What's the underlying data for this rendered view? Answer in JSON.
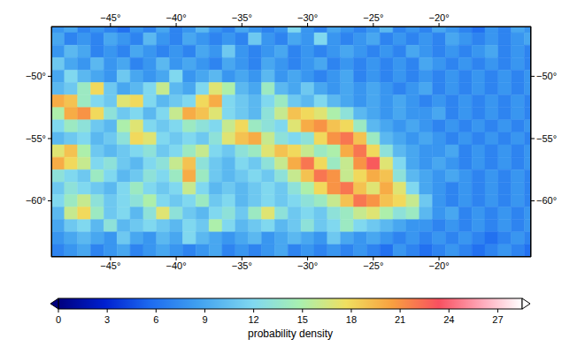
{
  "chart_data": {
    "type": "heatmap",
    "xlim": [
      -49.5,
      -13
    ],
    "ylim": [
      -64.5,
      -46
    ],
    "xticks": [
      {
        "value": -45,
        "label": "−45°"
      },
      {
        "value": -40,
        "label": "−40°"
      },
      {
        "value": -35,
        "label": "−35°"
      },
      {
        "value": -30,
        "label": "−30°"
      },
      {
        "value": -25,
        "label": "−25°"
      },
      {
        "value": -20,
        "label": "−20°"
      }
    ],
    "yticks": [
      {
        "value": -50,
        "label": "−50°"
      },
      {
        "value": -55,
        "label": "−55°"
      },
      {
        "value": -60,
        "label": "−60°"
      }
    ],
    "x": [
      -49,
      -48,
      -47,
      -46,
      -45,
      -44,
      -43,
      -42,
      -41,
      -40,
      -39,
      -38,
      -37,
      -36,
      -35,
      -34,
      -33,
      -32,
      -31,
      -30,
      -29,
      -28,
      -27,
      -26,
      -25,
      -24,
      -23,
      -22,
      -21,
      -20,
      -19,
      -18,
      -17,
      -16,
      -15,
      -14,
      -13
    ],
    "y": [
      -46,
      -47,
      -48,
      -49,
      -50,
      -51,
      -52,
      -53,
      -54,
      -55,
      -56,
      -57,
      -58,
      -59,
      -60,
      -61,
      -62,
      -63,
      -64
    ],
    "values": [
      [
        8,
        9,
        7,
        8,
        7,
        6,
        8,
        7,
        9,
        7,
        8,
        10,
        8,
        7,
        9,
        8,
        7,
        8,
        12,
        8,
        7,
        9,
        8,
        7,
        8,
        10,
        7,
        8,
        7,
        9,
        8,
        7,
        6,
        8,
        7,
        9,
        8
      ],
      [
        9,
        7,
        8,
        7,
        9,
        8,
        7,
        10,
        8,
        7,
        9,
        8,
        7,
        8,
        7,
        11,
        8,
        7,
        9,
        8,
        12,
        8,
        7,
        8,
        9,
        7,
        8,
        7,
        8,
        7,
        9,
        8,
        7,
        8,
        7,
        8,
        9
      ],
      [
        8,
        10,
        9,
        7,
        8,
        7,
        9,
        8,
        7,
        8,
        7,
        9,
        8,
        11,
        8,
        7,
        8,
        9,
        7,
        8,
        7,
        8,
        9,
        8,
        7,
        8,
        7,
        9,
        8,
        7,
        8,
        7,
        8,
        9,
        7,
        8,
        7
      ],
      [
        11,
        9,
        8,
        10,
        8,
        9,
        7,
        8,
        10,
        8,
        9,
        8,
        7,
        9,
        8,
        7,
        9,
        8,
        7,
        8,
        9,
        7,
        8,
        7,
        8,
        7,
        8,
        7,
        9,
        8,
        7,
        8,
        7,
        8,
        7,
        8,
        7
      ],
      [
        9,
        12,
        10,
        9,
        8,
        11,
        9,
        8,
        9,
        12,
        8,
        9,
        10,
        8,
        9,
        8,
        10,
        8,
        9,
        8,
        7,
        8,
        9,
        7,
        8,
        7,
        8,
        7,
        8,
        7,
        8,
        7,
        8,
        7,
        8,
        7,
        8
      ],
      [
        10,
        11,
        14,
        18,
        11,
        9,
        10,
        12,
        16,
        10,
        9,
        12,
        17,
        15,
        10,
        9,
        14,
        10,
        9,
        11,
        9,
        8,
        9,
        8,
        9,
        8,
        7,
        8,
        9,
        7,
        8,
        7,
        8,
        7,
        8,
        7,
        8
      ],
      [
        20,
        19,
        14,
        12,
        11,
        17,
        18,
        12,
        10,
        11,
        12,
        18,
        20,
        12,
        11,
        10,
        12,
        14,
        11,
        10,
        12,
        10,
        9,
        8,
        9,
        8,
        9,
        8,
        7,
        8,
        7,
        8,
        7,
        8,
        7,
        8,
        7
      ],
      [
        15,
        20,
        21,
        18,
        13,
        11,
        12,
        10,
        12,
        16,
        20,
        19,
        17,
        12,
        11,
        10,
        13,
        16,
        19,
        18,
        17,
        15,
        13,
        10,
        9,
        8,
        9,
        8,
        8,
        9,
        7,
        8,
        7,
        8,
        7,
        8,
        7
      ],
      [
        12,
        14,
        13,
        11,
        10,
        15,
        17,
        12,
        11,
        12,
        14,
        13,
        12,
        16,
        18,
        14,
        13,
        12,
        17,
        20,
        21,
        19,
        18,
        14,
        10,
        9,
        8,
        9,
        8,
        7,
        8,
        7,
        8,
        7,
        8,
        7,
        8
      ],
      [
        10,
        11,
        12,
        10,
        11,
        13,
        18,
        17,
        12,
        11,
        12,
        11,
        13,
        17,
        19,
        20,
        16,
        13,
        12,
        13,
        18,
        21,
        22,
        19,
        14,
        10,
        9,
        8,
        9,
        8,
        7,
        8,
        7,
        8,
        7,
        8,
        7
      ],
      [
        17,
        19,
        15,
        11,
        10,
        11,
        12,
        13,
        11,
        12,
        14,
        16,
        12,
        11,
        13,
        14,
        17,
        19,
        18,
        16,
        14,
        15,
        20,
        22,
        18,
        13,
        10,
        9,
        8,
        8,
        9,
        7,
        8,
        7,
        8,
        7,
        8
      ],
      [
        20,
        18,
        16,
        12,
        13,
        11,
        10,
        12,
        13,
        16,
        19,
        13,
        11,
        10,
        12,
        11,
        13,
        16,
        20,
        22,
        18,
        14,
        16,
        21,
        23,
        17,
        12,
        9,
        8,
        9,
        8,
        7,
        8,
        7,
        8,
        7,
        8
      ],
      [
        13,
        12,
        11,
        14,
        12,
        10,
        11,
        13,
        12,
        14,
        20,
        14,
        11,
        10,
        11,
        12,
        11,
        13,
        16,
        19,
        22,
        21,
        16,
        18,
        20,
        19,
        13,
        10,
        9,
        8,
        9,
        8,
        7,
        8,
        7,
        8,
        7
      ],
      [
        11,
        13,
        12,
        11,
        10,
        12,
        14,
        12,
        11,
        12,
        16,
        12,
        10,
        11,
        10,
        11,
        12,
        11,
        13,
        15,
        18,
        21,
        22,
        19,
        17,
        20,
        17,
        12,
        9,
        8,
        7,
        8,
        7,
        8,
        7,
        8,
        7
      ],
      [
        12,
        14,
        16,
        13,
        11,
        12,
        13,
        15,
        12,
        11,
        12,
        14,
        11,
        12,
        10,
        11,
        12,
        11,
        12,
        13,
        14,
        16,
        19,
        22,
        21,
        19,
        18,
        16,
        11,
        8,
        7,
        8,
        7,
        8,
        7,
        8,
        7
      ],
      [
        10,
        16,
        18,
        14,
        11,
        12,
        10,
        13,
        17,
        13,
        11,
        10,
        12,
        13,
        11,
        14,
        17,
        13,
        11,
        12,
        11,
        13,
        14,
        16,
        17,
        15,
        13,
        14,
        10,
        8,
        9,
        7,
        8,
        7,
        8,
        7,
        8
      ],
      [
        9,
        11,
        12,
        10,
        13,
        10,
        11,
        12,
        11,
        10,
        12,
        11,
        15,
        12,
        10,
        11,
        12,
        10,
        11,
        13,
        11,
        12,
        14,
        12,
        11,
        10,
        9,
        8,
        8,
        7,
        8,
        7,
        8,
        7,
        8,
        7,
        8
      ],
      [
        8,
        9,
        10,
        9,
        8,
        11,
        9,
        8,
        10,
        9,
        12,
        10,
        9,
        8,
        9,
        10,
        8,
        9,
        10,
        9,
        8,
        11,
        9,
        8,
        9,
        8,
        7,
        8,
        7,
        8,
        7,
        8,
        7,
        6,
        7,
        8,
        7
      ],
      [
        7,
        8,
        9,
        7,
        8,
        9,
        7,
        8,
        9,
        8,
        7,
        8,
        9,
        7,
        8,
        7,
        8,
        9,
        7,
        8,
        7,
        8,
        7,
        8,
        7,
        6,
        8,
        7,
        6,
        7,
        8,
        7,
        6,
        7,
        8,
        7,
        6
      ]
    ],
    "colorbar": {
      "range": [
        0,
        28.5
      ],
      "ticks": [
        0,
        3,
        6,
        9,
        12,
        15,
        18,
        21,
        24,
        27
      ],
      "label": "probability density"
    }
  }
}
